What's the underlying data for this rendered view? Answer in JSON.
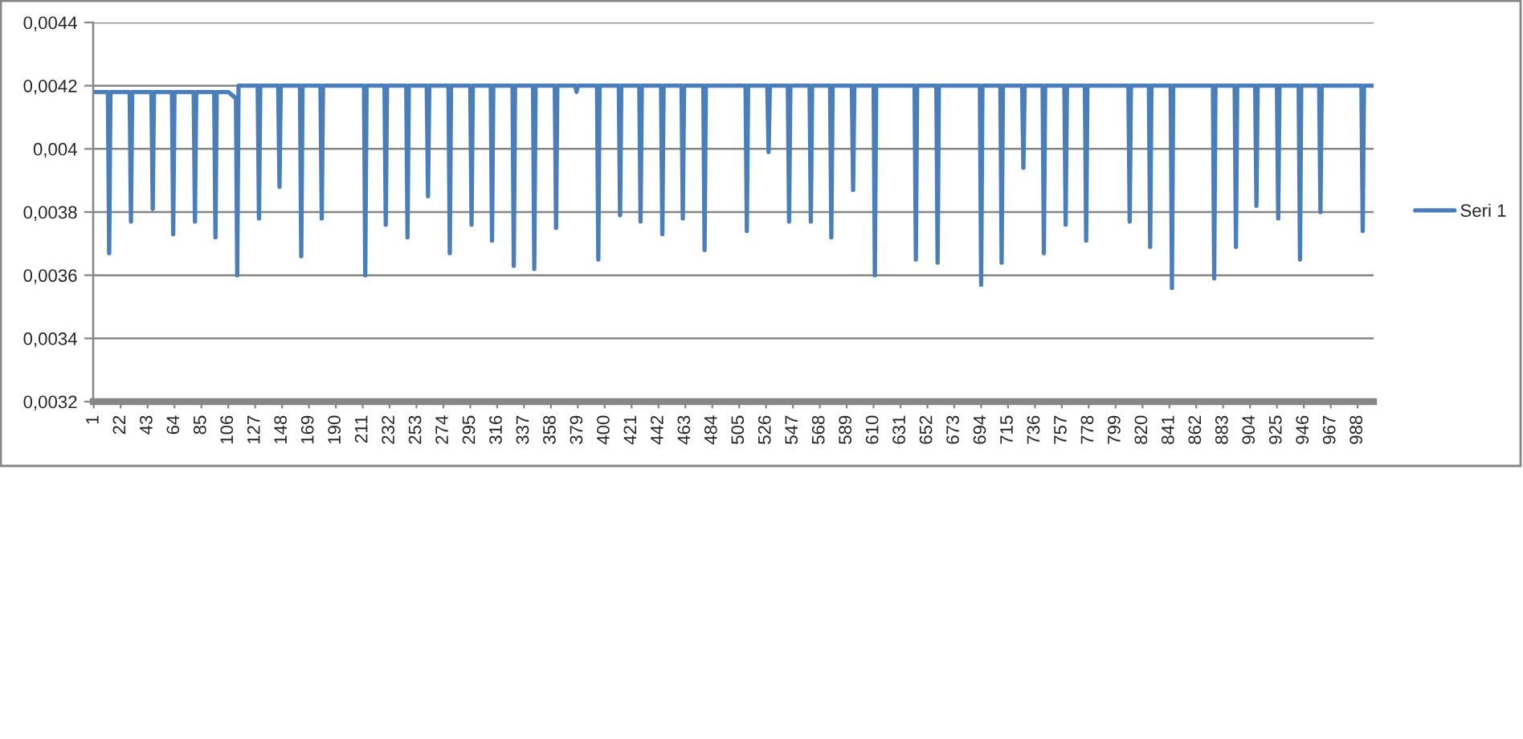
{
  "chart_data": {
    "type": "line",
    "x": [
      1,
      12,
      13,
      14,
      29,
      30,
      31,
      46,
      47,
      48,
      62,
      63,
      64,
      79,
      80,
      81,
      95,
      96,
      97,
      106,
      112,
      113,
      114,
      129,
      130,
      131,
      145,
      146,
      147,
      162,
      163,
      164,
      178,
      179,
      180,
      212,
      213,
      214,
      228,
      229,
      230,
      245,
      246,
      247,
      261,
      262,
      263,
      278,
      279,
      280,
      295,
      296,
      297,
      311,
      312,
      313,
      328,
      329,
      330,
      344,
      345,
      346,
      361,
      362,
      363,
      377,
      378,
      379,
      394,
      395,
      396,
      411,
      412,
      413,
      427,
      428,
      429,
      444,
      445,
      446,
      460,
      461,
      462,
      477,
      478,
      479,
      510,
      511,
      512,
      527,
      528,
      529,
      543,
      544,
      545,
      560,
      561,
      562,
      576,
      577,
      578,
      593,
      594,
      595,
      610,
      611,
      612,
      642,
      643,
      644,
      659,
      660,
      661,
      693,
      694,
      695,
      709,
      710,
      711,
      726,
      727,
      728,
      742,
      743,
      744,
      759,
      760,
      761,
      775,
      776,
      777,
      809,
      810,
      811,
      825,
      826,
      827,
      842,
      843,
      844,
      875,
      876,
      877,
      892,
      893,
      894,
      908,
      909,
      910,
      925,
      926,
      927,
      942,
      943,
      944,
      958,
      959,
      960,
      991,
      992,
      993,
      1000
    ],
    "series": [
      {
        "name": "Seri 1",
        "color": "#4a7ebb",
        "values": [
          0.00418,
          0.00418,
          0.00367,
          0.00418,
          0.00418,
          0.00377,
          0.00418,
          0.00418,
          0.00381,
          0.00418,
          0.00418,
          0.00373,
          0.00418,
          0.00418,
          0.00377,
          0.00418,
          0.00418,
          0.00372,
          0.00418,
          0.00418,
          0.00416,
          0.0036,
          0.0042,
          0.0042,
          0.00378,
          0.0042,
          0.0042,
          0.00388,
          0.0042,
          0.0042,
          0.00366,
          0.0042,
          0.0042,
          0.00378,
          0.0042,
          0.0042,
          0.0036,
          0.0042,
          0.0042,
          0.00376,
          0.0042,
          0.0042,
          0.00372,
          0.0042,
          0.0042,
          0.00385,
          0.0042,
          0.0042,
          0.00367,
          0.0042,
          0.0042,
          0.00376,
          0.0042,
          0.0042,
          0.00371,
          0.0042,
          0.0042,
          0.00363,
          0.0042,
          0.0042,
          0.00362,
          0.0042,
          0.0042,
          0.00375,
          0.0042,
          0.0042,
          0.00418,
          0.0042,
          0.0042,
          0.00365,
          0.0042,
          0.0042,
          0.00379,
          0.0042,
          0.0042,
          0.00377,
          0.0042,
          0.0042,
          0.00373,
          0.0042,
          0.0042,
          0.00378,
          0.0042,
          0.0042,
          0.00368,
          0.0042,
          0.0042,
          0.00374,
          0.0042,
          0.0042,
          0.00399,
          0.0042,
          0.0042,
          0.00377,
          0.0042,
          0.0042,
          0.00377,
          0.0042,
          0.0042,
          0.00372,
          0.0042,
          0.0042,
          0.00387,
          0.0042,
          0.0042,
          0.0036,
          0.0042,
          0.0042,
          0.00365,
          0.0042,
          0.0042,
          0.00364,
          0.0042,
          0.0042,
          0.00357,
          0.0042,
          0.0042,
          0.00364,
          0.0042,
          0.0042,
          0.00394,
          0.0042,
          0.0042,
          0.00367,
          0.0042,
          0.0042,
          0.00376,
          0.0042,
          0.0042,
          0.00371,
          0.0042,
          0.0042,
          0.00377,
          0.0042,
          0.0042,
          0.00369,
          0.0042,
          0.0042,
          0.00356,
          0.0042,
          0.0042,
          0.00359,
          0.0042,
          0.0042,
          0.00369,
          0.0042,
          0.0042,
          0.00382,
          0.0042,
          0.0042,
          0.00378,
          0.0042,
          0.0042,
          0.00365,
          0.0042,
          0.0042,
          0.0038,
          0.0042,
          0.0042,
          0.00374,
          0.0042,
          0.0042
        ]
      }
    ],
    "xlim": [
      0.5,
      1000.5
    ],
    "xticks": [
      1,
      22,
      43,
      64,
      85,
      106,
      127,
      148,
      169,
      190,
      211,
      232,
      253,
      274,
      295,
      316,
      337,
      358,
      379,
      400,
      421,
      442,
      463,
      484,
      505,
      526,
      547,
      568,
      589,
      610,
      631,
      652,
      673,
      694,
      715,
      736,
      757,
      778,
      799,
      820,
      841,
      862,
      883,
      904,
      925,
      946,
      967,
      988
    ],
    "ylim": [
      0.0032,
      0.0044
    ],
    "yticks": [
      {
        "value": 0.0032,
        "label": "0,0032"
      },
      {
        "value": 0.0034,
        "label": "0,0034"
      },
      {
        "value": 0.0036,
        "label": "0,0036"
      },
      {
        "value": 0.0038,
        "label": "0,0038"
      },
      {
        "value": 0.004,
        "label": "0,004"
      },
      {
        "value": 0.0042,
        "label": "0,0042"
      },
      {
        "value": 0.0044,
        "label": "0,0044"
      }
    ],
    "grid": "y",
    "legend": "right"
  }
}
